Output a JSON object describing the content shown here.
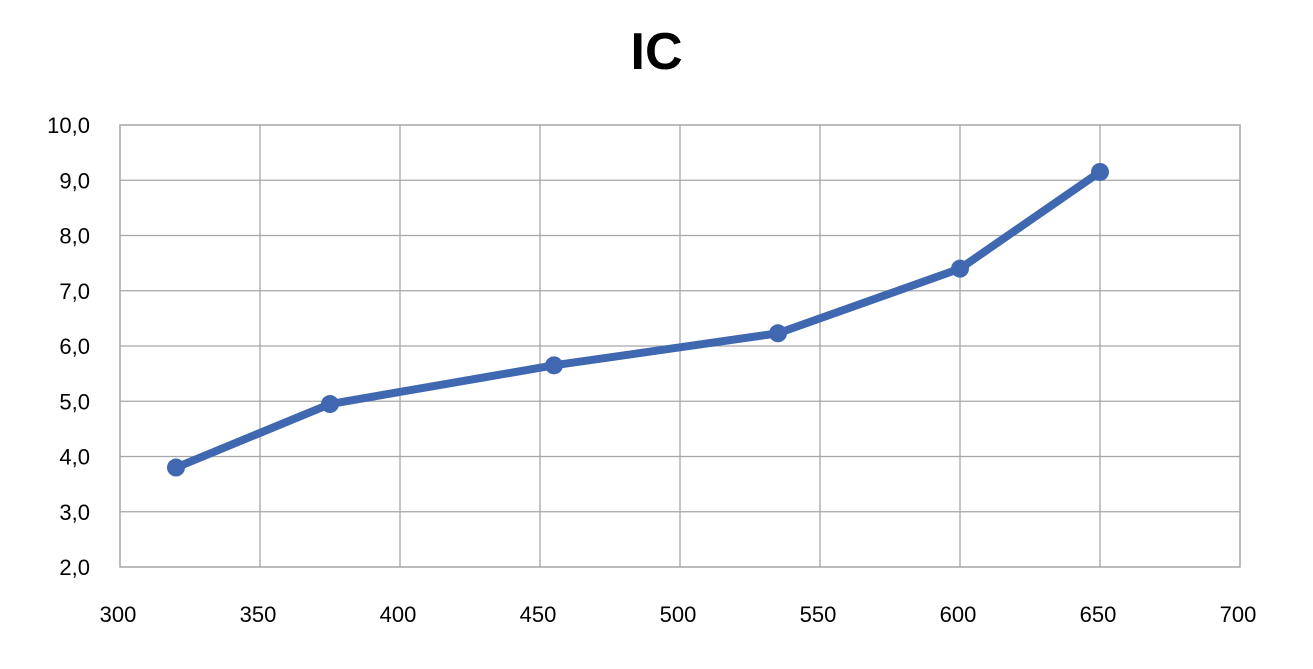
{
  "chart_data": {
    "type": "line",
    "title": "IC",
    "xlabel": "",
    "ylabel": "",
    "xlim": [
      300,
      700
    ],
    "ylim": [
      2,
      10
    ],
    "x_ticks": [
      "300",
      "350",
      "400",
      "450",
      "500",
      "550",
      "600",
      "650",
      "700"
    ],
    "y_ticks": [
      "2,0",
      "3,0",
      "4,0",
      "5,0",
      "6,0",
      "7,0",
      "8,0",
      "9,0",
      "10,0"
    ],
    "grid": true,
    "legend": "none",
    "series": [
      {
        "color": "#4068B0",
        "x": [
          320,
          375,
          455,
          535,
          600,
          650
        ],
        "y": [
          3.8,
          4.95,
          5.65,
          6.23,
          7.4,
          9.15
        ]
      }
    ]
  }
}
